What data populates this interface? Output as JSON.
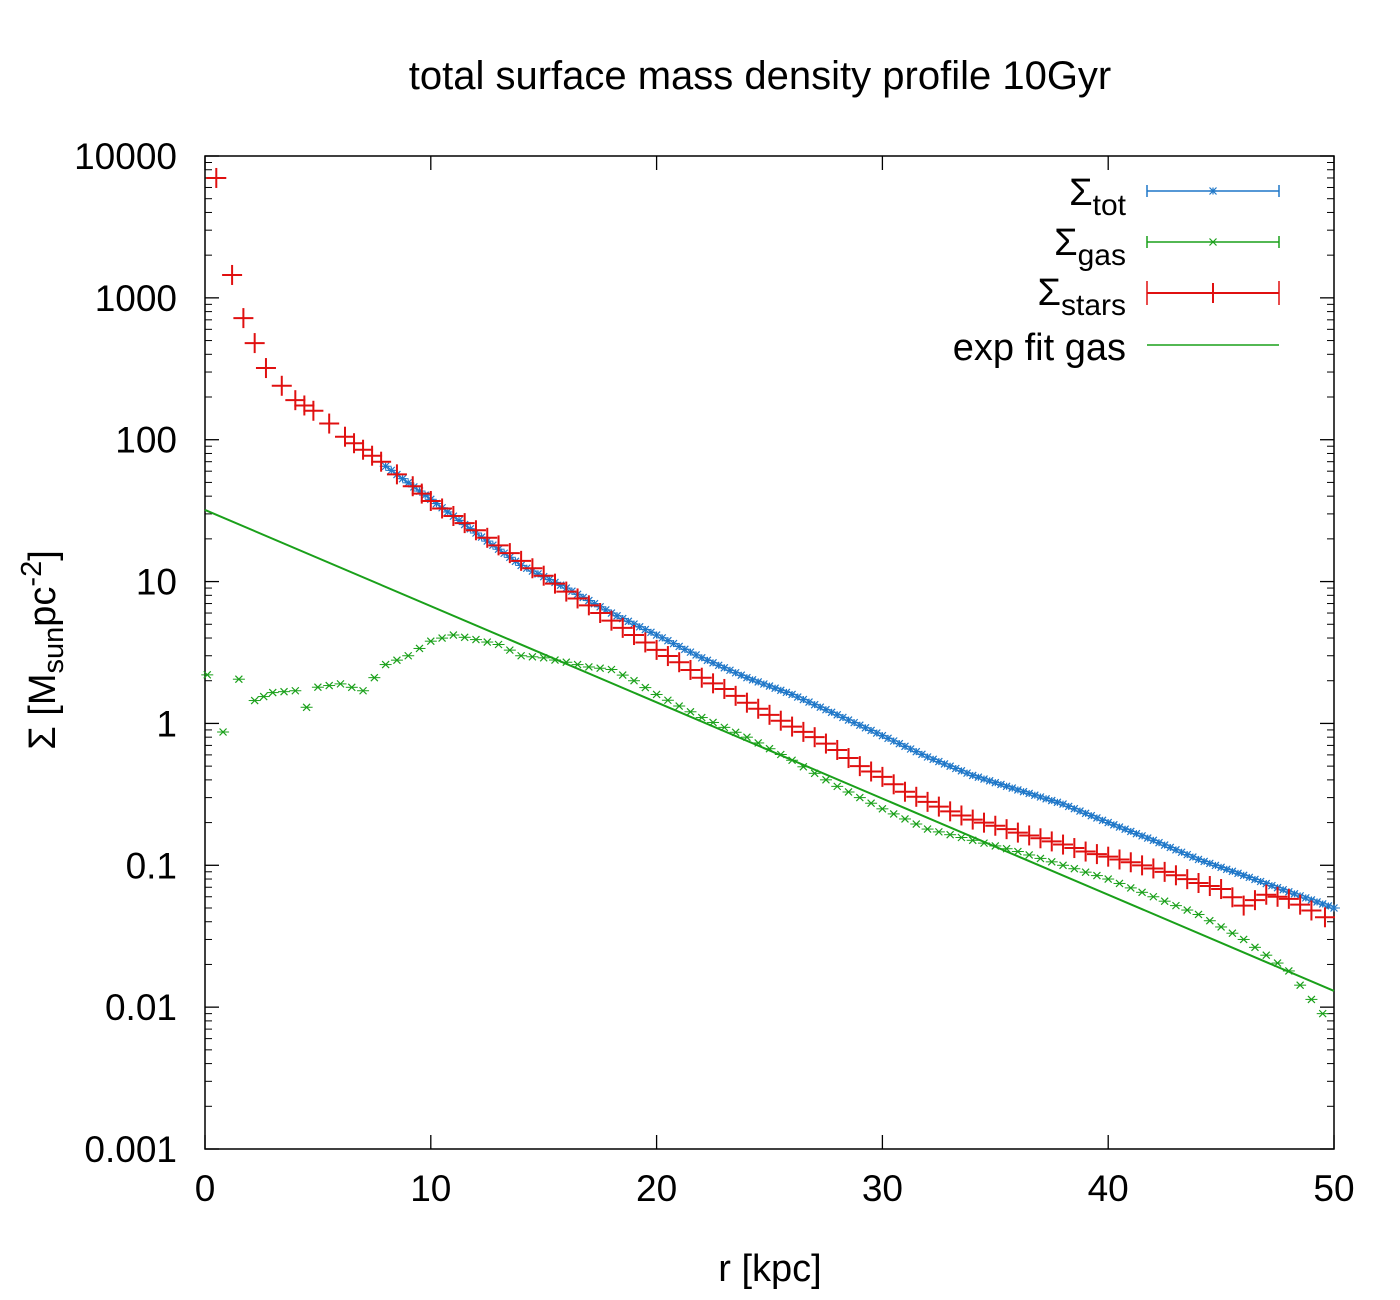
{
  "chart_data": {
    "type": "scatter",
    "title": "total surface mass density profile 10Gyr",
    "xlabel": "r [kpc]",
    "ylabel": {
      "prefix": "Σ [M",
      "sub": "sun",
      "mid": "pc",
      "sup": "-2",
      "suffix": "]"
    },
    "xlim": [
      0,
      50
    ],
    "ylim": [
      0.001,
      10000
    ],
    "yscale": "log",
    "x_ticks": [
      0,
      10,
      20,
      30,
      40,
      50
    ],
    "x_tick_labels": [
      "0",
      "10",
      "20",
      "30",
      "40",
      "50"
    ],
    "y_ticks": [
      0.001,
      0.01,
      0.1,
      1,
      10,
      100,
      1000,
      10000
    ],
    "y_tick_labels": [
      "0.001",
      "0.01",
      "0.1",
      "1",
      "10",
      "100",
      "1000",
      "10000"
    ],
    "legend_position": "top-right",
    "legend": [
      {
        "id": "tot",
        "symbol": "Σ",
        "sub": "tot",
        "color": "#1f77c8",
        "style": "star"
      },
      {
        "id": "gas",
        "symbol": "Σ",
        "sub": "gas",
        "color": "#1aa01a",
        "style": "cross"
      },
      {
        "id": "stars",
        "symbol": "Σ",
        "sub": "stars",
        "color": "#e01010",
        "style": "plus"
      },
      {
        "id": "fit",
        "text": "exp fit gas",
        "color": "#1aa01a",
        "style": "line"
      }
    ],
    "series": [
      {
        "name": "Σ_tot",
        "color": "#1f77c8",
        "x": [
          0.5,
          2,
          4,
          6,
          8,
          10,
          12,
          14,
          16,
          18,
          20,
          22,
          24,
          26,
          28,
          30,
          32,
          34,
          36,
          38,
          40,
          42,
          44,
          46,
          48,
          50
        ],
        "y": [
          7000,
          480,
          190,
          110,
          65,
          38,
          22,
          13,
          9,
          6,
          4.2,
          2.9,
          2.1,
          1.6,
          1.15,
          0.82,
          0.58,
          0.43,
          0.34,
          0.27,
          0.2,
          0.15,
          0.11,
          0.085,
          0.065,
          0.05
        ]
      },
      {
        "name": "Σ_gas",
        "color": "#1aa01a",
        "x": [
          0.1,
          0.8,
          1.5,
          2.2,
          3,
          4,
          4.5,
          5,
          6,
          7,
          8,
          9,
          10,
          11,
          12,
          13,
          14,
          15,
          16,
          17,
          18,
          19,
          20,
          22,
          24,
          26,
          28,
          30,
          32,
          34,
          36,
          38,
          40,
          42,
          44,
          46,
          48,
          49.5
        ],
        "y": [
          2.2,
          0.87,
          2.05,
          1.45,
          1.65,
          1.7,
          1.3,
          1.8,
          1.9,
          1.7,
          2.6,
          3.0,
          3.8,
          4.2,
          3.9,
          3.6,
          3.0,
          2.9,
          2.7,
          2.5,
          2.4,
          2.0,
          1.6,
          1.1,
          0.8,
          0.55,
          0.36,
          0.25,
          0.18,
          0.15,
          0.125,
          0.1,
          0.08,
          0.06,
          0.045,
          0.03,
          0.018,
          0.009
        ]
      },
      {
        "name": "Σ_stars",
        "color": "#e01010",
        "x": [
          0.5,
          1.2,
          1.7,
          2.2,
          2.7,
          3.4,
          4,
          4.8,
          5.5,
          6.2,
          7,
          7.8,
          8.5,
          9.2,
          10,
          11,
          12,
          13,
          14,
          15,
          16,
          17,
          18,
          19,
          20,
          21,
          22,
          23,
          24,
          25,
          26,
          27,
          28,
          29,
          30,
          31,
          32,
          33,
          34,
          35,
          36,
          37,
          38,
          39,
          40,
          41,
          42,
          43,
          44,
          45,
          46,
          47,
          48,
          49,
          49.6
        ],
        "y": [
          7000,
          1450,
          720,
          480,
          320,
          240,
          190,
          160,
          130,
          105,
          85,
          70,
          57,
          47,
          37,
          29,
          23,
          18,
          14,
          11,
          8.5,
          6.8,
          5.3,
          4.2,
          3.3,
          2.7,
          2.1,
          1.75,
          1.4,
          1.15,
          0.95,
          0.8,
          0.65,
          0.5,
          0.42,
          0.33,
          0.28,
          0.24,
          0.21,
          0.19,
          0.17,
          0.155,
          0.14,
          0.125,
          0.115,
          0.105,
          0.095,
          0.085,
          0.075,
          0.068,
          0.052,
          0.062,
          0.058,
          0.048,
          0.043
        ]
      },
      {
        "name": "exp fit gas",
        "color": "#1aa01a",
        "type": "line",
        "x": [
          0,
          50
        ],
        "y": [
          32,
          0.013
        ]
      }
    ]
  }
}
